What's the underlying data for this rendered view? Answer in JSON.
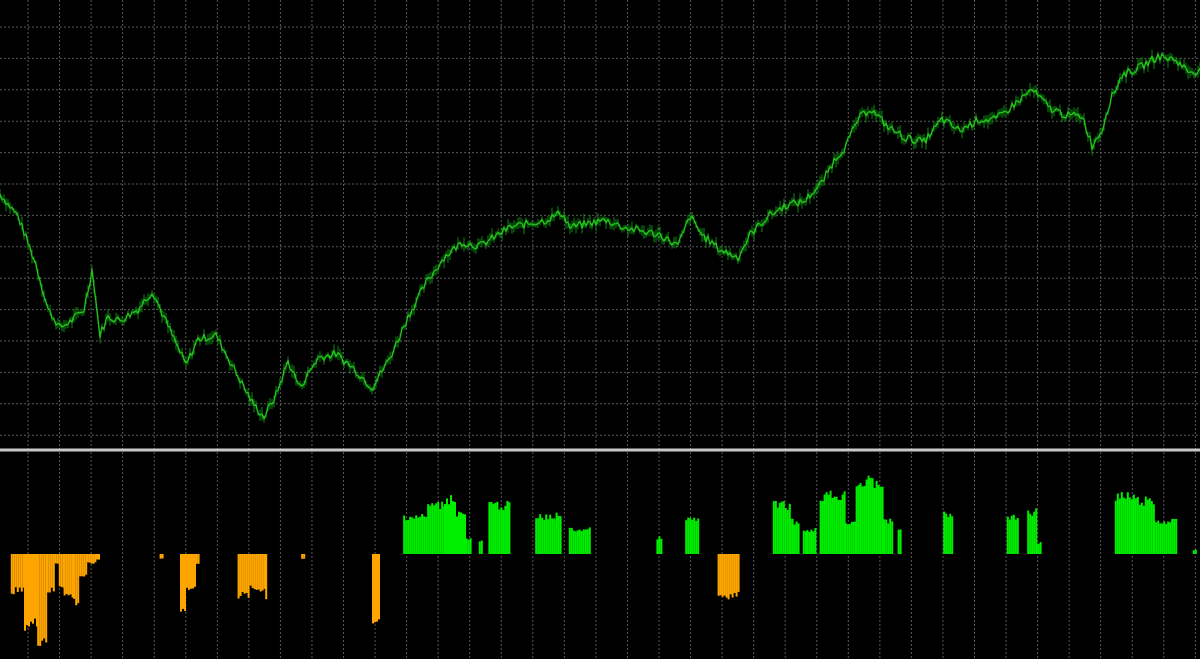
{
  "chart_data": {
    "type": "line",
    "title": "",
    "xlabel": "",
    "ylabel": "",
    "grid": true,
    "legend": "none",
    "colors": {
      "background": "#000000",
      "grid": "#5a5a5a",
      "separator": "#c8c8c8",
      "price_line": "#22c21a",
      "price_wick": "#0d8a12",
      "histogram_positive": "#00ee00",
      "histogram_negative": "#ffa500"
    },
    "price_panel": {
      "type": "line",
      "ylim": [
        0,
        100
      ],
      "x_range": [
        0,
        100
      ],
      "anchor_points": [
        [
          0,
          64
        ],
        [
          1.5,
          58
        ],
        [
          3,
          45
        ],
        [
          4,
          33
        ],
        [
          5,
          28
        ],
        [
          6,
          30
        ],
        [
          7,
          33
        ],
        [
          7.7,
          44
        ],
        [
          8.3,
          26
        ],
        [
          9,
          31
        ],
        [
          10,
          30
        ],
        [
          11.5,
          33
        ],
        [
          12.7,
          38
        ],
        [
          13.5,
          32
        ],
        [
          14.5,
          25
        ],
        [
          15.5,
          18
        ],
        [
          16.5,
          25
        ],
        [
          18,
          26
        ],
        [
          19,
          20
        ],
        [
          20,
          14
        ],
        [
          21,
          8
        ],
        [
          22,
          4
        ],
        [
          23,
          10
        ],
        [
          24,
          19
        ],
        [
          25,
          12
        ],
        [
          26.5,
          20
        ],
        [
          28,
          21
        ],
        [
          29.5,
          17
        ],
        [
          31,
          12
        ],
        [
          32.5,
          20
        ],
        [
          34,
          31
        ],
        [
          35.5,
          40
        ],
        [
          37,
          47
        ],
        [
          38.5,
          51
        ],
        [
          40,
          50
        ],
        [
          41,
          52
        ],
        [
          42.5,
          55
        ],
        [
          44,
          56
        ],
        [
          45.5,
          57
        ],
        [
          46.8,
          59
        ],
        [
          47.5,
          55
        ],
        [
          49,
          56
        ],
        [
          50.5,
          57
        ],
        [
          52,
          55
        ],
        [
          53.5,
          54
        ],
        [
          55,
          53
        ],
        [
          56.5,
          50
        ],
        [
          57.5,
          58
        ],
        [
          58.5,
          53
        ],
        [
          60,
          49
        ],
        [
          61.5,
          47
        ],
        [
          62.5,
          53
        ],
        [
          64,
          58
        ],
        [
          65.5,
          61
        ],
        [
          67,
          62
        ],
        [
          68.5,
          67
        ],
        [
          69.5,
          73
        ],
        [
          70.5,
          77
        ],
        [
          71.5,
          84
        ],
        [
          72.5,
          87
        ],
        [
          74,
          82
        ],
        [
          75.5,
          79
        ],
        [
          77,
          78
        ],
        [
          78.5,
          84
        ],
        [
          80,
          81
        ],
        [
          81.5,
          84
        ],
        [
          83,
          84
        ],
        [
          84.5,
          88
        ],
        [
          86,
          92
        ],
        [
          87.5,
          87
        ],
        [
          89,
          85
        ],
        [
          90.2,
          85
        ],
        [
          91,
          77
        ],
        [
          91.8,
          81
        ],
        [
          92.5,
          89
        ],
        [
          93.5,
          96
        ],
        [
          95,
          98
        ],
        [
          96.5,
          101
        ],
        [
          98,
          100
        ],
        [
          99,
          97
        ],
        [
          100,
          97
        ]
      ]
    },
    "histogram_panel": {
      "type": "bar",
      "ylim": [
        -100,
        100
      ],
      "x_range": [
        0,
        100
      ],
      "segments": [
        {
          "from": 0.9,
          "to": 2.0,
          "value": -40
        },
        {
          "from": 2.0,
          "to": 3.1,
          "value": -76
        },
        {
          "from": 3.1,
          "to": 3.9,
          "value": -92
        },
        {
          "from": 3.9,
          "to": 4.4,
          "value": -40
        },
        {
          "from": 4.4,
          "to": 4.9,
          "value": -10
        },
        {
          "from": 4.9,
          "to": 5.3,
          "value": -34
        },
        {
          "from": 5.3,
          "to": 6.1,
          "value": -45
        },
        {
          "from": 6.1,
          "to": 6.6,
          "value": -52
        },
        {
          "from": 6.6,
          "to": 7.2,
          "value": -24
        },
        {
          "from": 7.2,
          "to": 8.0,
          "value": -10
        },
        {
          "from": 8.0,
          "to": 8.3,
          "value": -6
        },
        {
          "from": 13.3,
          "to": 13.5,
          "value": -5
        },
        {
          "from": 15.0,
          "to": 15.5,
          "value": -58
        },
        {
          "from": 15.5,
          "to": 16.3,
          "value": -38
        },
        {
          "from": 16.3,
          "to": 16.6,
          "value": -10
        },
        {
          "from": 19.8,
          "to": 20.8,
          "value": -45
        },
        {
          "from": 20.8,
          "to": 22.1,
          "value": -38
        },
        {
          "from": 22.1,
          "to": 22.2,
          "value": -50
        },
        {
          "from": 25.1,
          "to": 25.3,
          "value": -5
        },
        {
          "from": 31.0,
          "to": 31.6,
          "value": -72
        },
        {
          "from": 33.6,
          "to": 35.6,
          "value": 46
        },
        {
          "from": 35.6,
          "to": 37.0,
          "value": 60
        },
        {
          "from": 37.0,
          "to": 38.0,
          "value": 68
        },
        {
          "from": 38.0,
          "to": 38.8,
          "value": 50
        },
        {
          "from": 38.8,
          "to": 39.2,
          "value": 18
        },
        {
          "from": 39.9,
          "to": 40.2,
          "value": 16
        },
        {
          "from": 40.7,
          "to": 42.5,
          "value": 60
        },
        {
          "from": 44.6,
          "to": 46.3,
          "value": 45
        },
        {
          "from": 46.3,
          "to": 46.7,
          "value": 48
        },
        {
          "from": 47.4,
          "to": 49.2,
          "value": 30
        },
        {
          "from": 54.7,
          "to": 55.1,
          "value": 20
        },
        {
          "from": 57.1,
          "to": 58.2,
          "value": 42
        },
        {
          "from": 59.8,
          "to": 61.5,
          "value": -45
        },
        {
          "from": 64.4,
          "to": 65.8,
          "value": 60
        },
        {
          "from": 65.8,
          "to": 66.5,
          "value": 40
        },
        {
          "from": 66.9,
          "to": 67.2,
          "value": 28
        },
        {
          "from": 67.2,
          "to": 67.9,
          "value": 30
        },
        {
          "from": 68.3,
          "to": 70.4,
          "value": 72
        },
        {
          "from": 70.4,
          "to": 71.3,
          "value": 40
        },
        {
          "from": 71.3,
          "to": 73.6,
          "value": 88
        },
        {
          "from": 73.6,
          "to": 74.3,
          "value": 40
        },
        {
          "from": 74.8,
          "to": 75.0,
          "value": 32
        },
        {
          "from": 78.6,
          "to": 79.4,
          "value": 48
        },
        {
          "from": 83.9,
          "to": 84.8,
          "value": 45
        },
        {
          "from": 85.6,
          "to": 86.3,
          "value": 52
        },
        {
          "from": 86.3,
          "to": 86.7,
          "value": 14
        },
        {
          "from": 92.9,
          "to": 94.4,
          "value": 70
        },
        {
          "from": 94.4,
          "to": 96.1,
          "value": 65
        },
        {
          "from": 96.1,
          "to": 98.0,
          "value": 40
        },
        {
          "from": 99.4,
          "to": 99.6,
          "value": 5
        }
      ]
    }
  }
}
